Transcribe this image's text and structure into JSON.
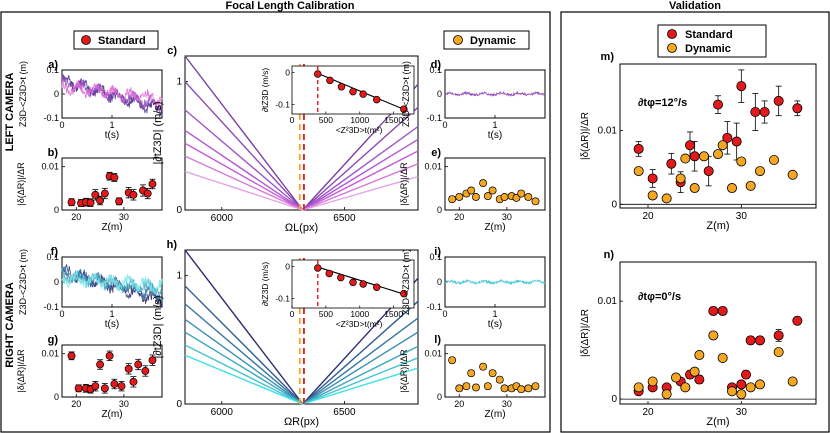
{
  "titles": {
    "left": "Focal Length Calibration",
    "right": "Validation"
  },
  "camera_labels": {
    "left": "LEFT CAMERA",
    "right": "RIGHT CAMERA"
  },
  "legends": {
    "standard": "Standard",
    "dynamic": "Dynamic"
  },
  "colors": {
    "standard": "#e31a1c",
    "dynamic": "#f5a623",
    "left_lines": [
      "#7b3fa0",
      "#8a4ab5",
      "#9b59c9",
      "#b056d4",
      "#c45dd6",
      "#d67ad9",
      "#e3a0e6"
    ],
    "right_lines": [
      "#2b2e6e",
      "#2f5b8f",
      "#3576a6",
      "#3b8fb4",
      "#3fa8c0",
      "#43c4d1",
      "#3ee0e6"
    ],
    "red_dash": "#e31a1c",
    "orange_dash": "#f5a623"
  },
  "chart_data": [
    {
      "id": "a",
      "label": "a)",
      "type": "line",
      "xlabel": "t(s)",
      "ylabel": "Z3D-<Z3D>t (m)",
      "xlim": [
        0,
        2
      ],
      "ylim": [
        -0.1,
        0.1
      ],
      "xticks": [
        0,
        1
      ],
      "yticks": [
        -0.1,
        0,
        0.1
      ],
      "series": [
        {
          "name": "purple",
          "start": 0.06,
          "end": -0.07
        },
        {
          "name": "violet",
          "start": 0.05,
          "end": -0.05
        },
        {
          "name": "pink",
          "start": 0.03,
          "end": -0.02
        }
      ]
    },
    {
      "id": "b",
      "label": "b)",
      "type": "scatter",
      "xlabel": "Z(m)",
      "ylabel": "|δ(ΔR)|/ΔR",
      "xlim": [
        17,
        38
      ],
      "ylim": [
        0,
        0.012
      ],
      "xticks": [
        20,
        30
      ],
      "yticks": [
        0,
        0.01
      ],
      "x": [
        19,
        21,
        22,
        23,
        24,
        25,
        26,
        27,
        28,
        29,
        31,
        32,
        34,
        35,
        36
      ],
      "y": [
        0.0018,
        0.0016,
        0.0018,
        0.0017,
        0.0035,
        0.0022,
        0.0038,
        0.0078,
        0.0075,
        0.002,
        0.004,
        0.0035,
        0.0045,
        0.0038,
        0.006
      ],
      "err": [
        0.0008,
        0.0008,
        0.0009,
        0.0009,
        0.0012,
        0.001,
        0.0012,
        0.0009,
        0.0009,
        0.0008,
        0.0012,
        0.0012,
        0.0013,
        0.0012,
        0.0011
      ]
    },
    {
      "id": "c",
      "label": "c)",
      "type": "line",
      "xlabel": "ΩL(px)",
      "ylabel": "|∂tZ3D| (m/s)",
      "xlim": [
        5850,
        6800
      ],
      "ylim": [
        0,
        1.2
      ],
      "xticks": [
        6000,
        6500
      ],
      "yticks": [
        0,
        1
      ],
      "vertex": 6330,
      "left_ends": [
        1.2,
        1.0,
        0.78,
        0.62,
        0.52,
        0.42,
        0.3
      ],
      "right_ends": [
        0.98,
        0.8,
        0.65,
        0.55,
        0.46,
        0.36,
        0.26
      ],
      "dash_red": 6335,
      "dash_orange": 6318,
      "inset": {
        "ylabel": "∂tZ3D (m/s)",
        "xlabel": "<Z²3D>t(m²)",
        "xlim": [
          0,
          1800
        ],
        "ylim": [
          -0.13,
          0.02
        ],
        "xticks": [
          0,
          500,
          1000,
          1500
        ],
        "yticks": [
          -0.1,
          0
        ],
        "x": [
          380,
          560,
          730,
          900,
          1050,
          1250,
          1650
        ],
        "y": [
          -0.005,
          -0.025,
          -0.045,
          -0.06,
          -0.068,
          -0.085,
          -0.115
        ],
        "fit": [
          [
            380,
            -0.003
          ],
          [
            1700,
            -0.12
          ]
        ]
      }
    },
    {
      "id": "d",
      "label": "d)",
      "type": "line",
      "xlabel": "t(s)",
      "ylabel": "Z3D-<Z3D>t (m)",
      "xlim": [
        0,
        2
      ],
      "ylim": [
        -0.1,
        0.1
      ],
      "xticks": [
        0,
        1
      ],
      "yticks": [
        -0.1,
        0,
        0.1
      ],
      "series": [
        {
          "name": "flat",
          "start": 0.0,
          "end": 0.0
        }
      ]
    },
    {
      "id": "e",
      "label": "e)",
      "type": "scatter",
      "xlabel": "Z(m)",
      "ylabel": "|δ(ΔR)|/ΔR",
      "xlim": [
        17,
        38
      ],
      "ylim": [
        0,
        0.012
      ],
      "xticks": [
        20,
        30
      ],
      "yticks": [
        0,
        0.01
      ],
      "x": [
        18.5,
        20,
        21.5,
        22.5,
        23.5,
        25,
        26,
        27,
        28.5,
        29.5,
        31,
        32,
        33,
        34.5,
        36
      ],
      "y": [
        0.0025,
        0.003,
        0.0038,
        0.0045,
        0.003,
        0.0062,
        0.0032,
        0.0045,
        0.0025,
        0.003,
        0.0032,
        0.0028,
        0.0038,
        0.003,
        0.002
      ],
      "err": [
        0.0006,
        0.0006,
        0.0006,
        0.0006,
        0.0006,
        0.0006,
        0.0006,
        0.0006,
        0.0006,
        0.0006,
        0.0006,
        0.0006,
        0.0006,
        0.0006,
        0.0006
      ]
    },
    {
      "id": "f",
      "label": "f)",
      "type": "line",
      "xlabel": "t(s)",
      "ylabel": "Z3D-<Z3D>t (m)",
      "xlim": [
        0,
        2
      ],
      "ylim": [
        -0.1,
        0.1
      ],
      "xticks": [
        0,
        1
      ],
      "yticks": [
        -0.1,
        0,
        0.1
      ],
      "series": [
        {
          "name": "navy",
          "start": 0.045,
          "end": -0.075
        },
        {
          "name": "blue",
          "start": 0.035,
          "end": -0.05
        },
        {
          "name": "teal",
          "start": 0.025,
          "end": -0.03
        },
        {
          "name": "cyan",
          "start": 0.015,
          "end": -0.015
        }
      ]
    },
    {
      "id": "g",
      "label": "g)",
      "type": "scatter",
      "xlabel": "Z(m)",
      "ylabel": "|δ(ΔR)|/ΔR",
      "xlim": [
        17,
        38
      ],
      "ylim": [
        0,
        0.012
      ],
      "xticks": [
        20,
        30
      ],
      "yticks": [
        0,
        0.01
      ],
      "x": [
        19,
        20.5,
        22,
        23,
        24,
        25,
        26,
        27,
        28,
        29.5,
        31,
        32,
        33,
        34.5,
        36
      ],
      "y": [
        0.0095,
        0.002,
        0.002,
        0.0018,
        0.0025,
        0.0075,
        0.002,
        0.0095,
        0.003,
        0.0025,
        0.0065,
        0.0035,
        0.0075,
        0.006,
        0.0085
      ],
      "err": [
        0.0009,
        0.0008,
        0.0009,
        0.0009,
        0.0011,
        0.0011,
        0.0011,
        0.0011,
        0.0011,
        0.0011,
        0.0012,
        0.0012,
        0.0012,
        0.0012,
        0.0012
      ]
    },
    {
      "id": "h",
      "label": "h)",
      "type": "line",
      "xlabel": "ΩR(px)",
      "ylabel": "|∂tZ3D| (m/s)",
      "xlim": [
        5850,
        6800
      ],
      "ylim": [
        0,
        1.2
      ],
      "xticks": [
        6000,
        6500
      ],
      "yticks": [
        0,
        1
      ],
      "vertex": 6330,
      "left_ends": [
        1.2,
        0.92,
        0.78,
        0.66,
        0.56,
        0.46,
        0.38
      ],
      "right_ends": [
        0.98,
        0.8,
        0.67,
        0.56,
        0.45,
        0.36,
        0.28
      ],
      "dash_red": 6335,
      "dash_orange": 6318,
      "inset": {
        "ylabel": "∂tZ3D (m/s)",
        "xlabel": "<Z²3D>t(m²)",
        "xlim": [
          0,
          1800
        ],
        "ylim": [
          -0.13,
          0.02
        ],
        "xticks": [
          0,
          500,
          1000,
          1500
        ],
        "yticks": [
          -0.1,
          0
        ],
        "x": [
          380,
          550,
          720,
          900,
          1050,
          1250,
          1650
        ],
        "y": [
          -0.005,
          -0.022,
          -0.035,
          -0.05,
          -0.055,
          -0.065,
          -0.085
        ],
        "fit": [
          [
            380,
            -0.002
          ],
          [
            1700,
            -0.09
          ]
        ]
      }
    },
    {
      "id": "i",
      "label": "i)",
      "type": "line",
      "xlabel": "t(s)",
      "ylabel": "Z3D-<Z3D>t (m)",
      "xlim": [
        0,
        2
      ],
      "ylim": [
        -0.1,
        0.1
      ],
      "xticks": [
        0,
        1
      ],
      "yticks": [
        -0.1,
        0,
        0.1
      ],
      "series": [
        {
          "name": "flat",
          "start": 0.0,
          "end": 0.0
        }
      ]
    },
    {
      "id": "l",
      "label": "l)",
      "type": "scatter",
      "xlabel": "Z(m)",
      "ylabel": "|δ(ΔR)|/ΔR",
      "xlim": [
        17,
        38
      ],
      "ylim": [
        0,
        0.012
      ],
      "xticks": [
        20,
        30
      ],
      "yticks": [
        0,
        0.01
      ],
      "x": [
        18.5,
        20,
        21.5,
        22.5,
        23.5,
        25,
        26,
        27,
        28.5,
        29.5,
        31,
        32,
        33,
        34.5,
        36
      ],
      "y": [
        0.0085,
        0.002,
        0.0025,
        0.0055,
        0.0022,
        0.007,
        0.0025,
        0.0055,
        0.004,
        0.002,
        0.002,
        0.0025,
        0.0018,
        0.002,
        0.0025
      ],
      "err": [
        0.0006,
        0.0006,
        0.0006,
        0.0006,
        0.0006,
        0.0006,
        0.0006,
        0.0006,
        0.0006,
        0.0006,
        0.0006,
        0.0006,
        0.0006,
        0.0006,
        0.0006
      ]
    },
    {
      "id": "m",
      "label": "m)",
      "type": "scatter",
      "annotation": "∂tφ=12°/s",
      "xlabel": "Z(m)",
      "ylabel": "|δ(ΔR)|/ΔR",
      "xlim": [
        17,
        38
      ],
      "ylim": [
        -0.0005,
        0.019
      ],
      "xticks": [
        20,
        30
      ],
      "yticks": [
        0,
        0.01
      ],
      "series": [
        {
          "name": "Standard",
          "x": [
            19,
            20.5,
            22.5,
            23.5,
            24.5,
            25,
            26.5,
            27.5,
            28.5,
            29.5,
            30,
            31.5,
            32.5,
            34,
            36
          ],
          "y": [
            0.0075,
            0.0035,
            0.0055,
            0.003,
            0.008,
            0.0065,
            0.0045,
            0.0135,
            0.009,
            0.0085,
            0.016,
            0.0125,
            0.0125,
            0.014,
            0.013
          ],
          "err": [
            0.001,
            0.0012,
            0.0014,
            0.0014,
            0.0018,
            0.002,
            0.002,
            0.0012,
            0.0022,
            0.0025,
            0.0022,
            0.0025,
            0.0015,
            0.002,
            0.001
          ]
        },
        {
          "name": "Dynamic",
          "x": [
            19,
            20.5,
            22,
            23.5,
            24,
            25,
            26,
            27.5,
            28,
            29,
            30,
            31,
            32,
            33.5,
            35.5
          ],
          "y": [
            0.0045,
            0.0012,
            0.0008,
            0.0035,
            0.0062,
            0.0022,
            0.0065,
            0.0068,
            0.008,
            0.0022,
            0.0058,
            0.0025,
            0.0045,
            0.006,
            0.004
          ],
          "err": []
        }
      ]
    },
    {
      "id": "n",
      "label": "n)",
      "type": "scatter",
      "annotation": "∂tφ=0°/s",
      "xlabel": "Z(m)",
      "ylabel": "|δ(ΔR)|/ΔR",
      "xlim": [
        17,
        38
      ],
      "ylim": [
        -0.0005,
        0.014
      ],
      "xticks": [
        20,
        30
      ],
      "yticks": [
        0,
        0.01
      ],
      "series": [
        {
          "name": "Standard",
          "x": [
            19,
            20.5,
            22,
            23.5,
            24.5,
            25.5,
            27,
            28,
            29,
            30,
            30.5,
            31,
            32,
            34,
            36
          ],
          "y": [
            0.0008,
            0.0012,
            0.0012,
            0.0018,
            0.0025,
            0.002,
            0.009,
            0.009,
            0.0012,
            0.0015,
            0.0025,
            0.006,
            0.006,
            0.0065,
            0.008
          ],
          "err": [
            0.0003,
            0.0003,
            0.0003,
            0.0003,
            0.0004,
            0.0004,
            0.0004,
            0.0004,
            0.0003,
            0.0003,
            0.0004,
            0.0004,
            0.0004,
            0.0006,
            0.0004
          ]
        },
        {
          "name": "Dynamic",
          "x": [
            19,
            20.5,
            22,
            23,
            24,
            25,
            25.5,
            27,
            28,
            29,
            30,
            31,
            32,
            34,
            35.5
          ],
          "y": [
            0.0012,
            0.0018,
            0.0005,
            0.0022,
            0.0012,
            0.0028,
            0.0045,
            0.0065,
            0.0042,
            0.0008,
            0.0005,
            0.0012,
            0.0015,
            0.0048,
            0.0018
          ],
          "err": []
        }
      ]
    }
  ]
}
